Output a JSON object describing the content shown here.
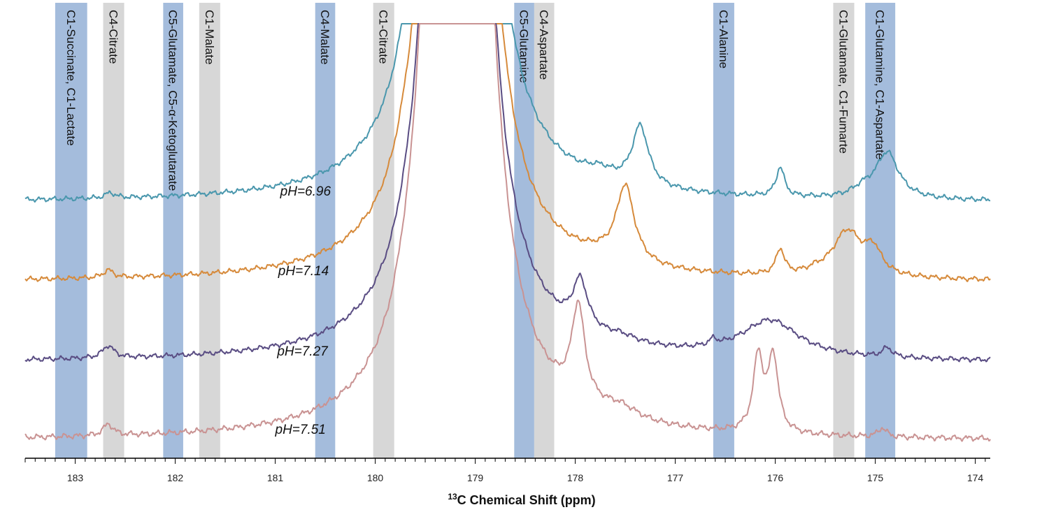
{
  "chart_data": {
    "type": "line",
    "title": "",
    "xlabel_sup": "13",
    "xlabel_rest": "C Chemical Shift (ppm)",
    "ylabel": "",
    "xlim": [
      183.5,
      173.85
    ],
    "x_reversed": true,
    "ticks": [
      183,
      182,
      181,
      180,
      179,
      178,
      177,
      176,
      175,
      174
    ],
    "grid": false,
    "bands": [
      {
        "label": "C1-Succinate, C1-Lactate",
        "from": 183.2,
        "to": 182.88,
        "color": "#a4bcdc"
      },
      {
        "label": "C4-Citrate",
        "from": 182.72,
        "to": 182.51,
        "color": "#d7d7d7"
      },
      {
        "label": "C5-Glutamate, C5-α-Ketoglutarate",
        "from": 182.12,
        "to": 181.92,
        "color": "#a4bcdc"
      },
      {
        "label": "C1-Malate",
        "from": 181.76,
        "to": 181.55,
        "color": "#d7d7d7"
      },
      {
        "label": "C4-Malate",
        "from": 180.6,
        "to": 180.4,
        "color": "#a4bcdc"
      },
      {
        "label": "C1-Citrate",
        "from": 180.02,
        "to": 179.81,
        "color": "#d7d7d7"
      },
      {
        "label": "C5-Glutamine",
        "from": 178.61,
        "to": 178.41,
        "color": "#a4bcdc"
      },
      {
        "label": "C4-Aspartate",
        "from": 178.41,
        "to": 178.21,
        "color": "#d7d7d7"
      },
      {
        "label": "C1-Alanine",
        "from": 176.62,
        "to": 176.41,
        "color": "#a4bcdc"
      },
      {
        "label": "C1-Glutamate, C1-Fumarte",
        "from": 175.42,
        "to": 175.21,
        "color": "#d7d7d7"
      },
      {
        "label": "C1-Glutamine, C1-Aspartate",
        "from": 175.1,
        "to": 174.8,
        "color": "#a4bcdc"
      }
    ],
    "series": [
      {
        "name": "pH=6.96",
        "label": "pH=6.96",
        "color": "#4a97ad",
        "label_x": 180.95,
        "baseline": 0,
        "peaks": [
          [
            182.65,
            0.07,
            0.06
          ],
          [
            179.72,
            0.07,
            0.08
          ],
          [
            177.75,
            0.11,
            0.17
          ],
          [
            177.35,
            0.78,
            0.1
          ],
          [
            175.95,
            0.38,
            0.05
          ],
          [
            175.12,
            0.1,
            0.13
          ],
          [
            174.88,
            0.6,
            0.14
          ]
        ]
      },
      {
        "name": "pH=7.14",
        "label": "pH=7.14",
        "color": "#d68a3b",
        "label_x": 180.97,
        "baseline": 0,
        "peaks": [
          [
            182.67,
            0.1,
            0.06
          ],
          [
            179.72,
            0.07,
            0.08
          ],
          [
            177.78,
            0.05,
            0.2
          ],
          [
            177.5,
            1.0,
            0.11
          ],
          [
            175.95,
            0.33,
            0.05
          ],
          [
            175.6,
            0.04,
            0.1
          ],
          [
            175.28,
            0.6,
            0.18
          ],
          [
            175.02,
            0.3,
            0.1
          ]
        ]
      },
      {
        "name": "pH=7.27",
        "label": "pH=7.27",
        "color": "#5a4d83",
        "label_x": 180.98,
        "baseline": 0,
        "peaks": [
          [
            182.67,
            0.16,
            0.07
          ],
          [
            179.72,
            0.07,
            0.08
          ],
          [
            177.95,
            0.62,
            0.09
          ],
          [
            177.55,
            0.08,
            0.2
          ],
          [
            176.62,
            0.08,
            0.05
          ],
          [
            176.05,
            0.48,
            0.35
          ],
          [
            174.88,
            0.12,
            0.06
          ]
        ]
      },
      {
        "name": "pH=7.51",
        "label": "pH=7.51",
        "color": "#c99393",
        "label_x": 181.0,
        "baseline": 0,
        "peaks": [
          [
            182.67,
            0.13,
            0.06
          ],
          [
            179.72,
            0.07,
            0.08
          ],
          [
            177.97,
            1.05,
            0.08
          ],
          [
            177.55,
            0.13,
            0.22
          ],
          [
            176.17,
            0.84,
            0.06
          ],
          [
            176.02,
            0.84,
            0.06
          ],
          [
            174.93,
            0.1,
            0.05
          ]
        ]
      }
    ]
  }
}
